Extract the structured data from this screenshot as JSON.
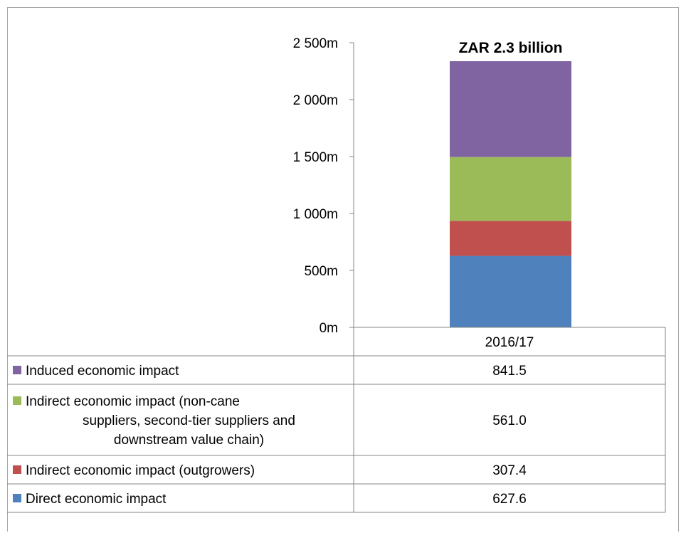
{
  "chart_data": {
    "type": "bar",
    "stacked": true,
    "categories": [
      "2016/17"
    ],
    "series": [
      {
        "name": "Direct economic impact",
        "values": [
          627.6
        ],
        "value_label": "627.6",
        "color": "#4f81bd"
      },
      {
        "name": "Indirect economic impact (outgrowers)",
        "values": [
          307.4
        ],
        "value_label": "307.4",
        "color": "#c0504d"
      },
      {
        "name": "Indirect economic impact (non-cane suppliers, second-tier suppliers and downstream value chain)",
        "name_lines": [
          "Indirect economic impact (non-cane",
          "suppliers, second-tier suppliers and",
          "downstream value chain)"
        ],
        "values": [
          561.0
        ],
        "value_label": "561.0",
        "color": "#9bbb59"
      },
      {
        "name": "Induced economic impact",
        "values": [
          841.5
        ],
        "value_label": "841.5",
        "color": "#8064a2"
      }
    ],
    "total_label": "ZAR 2.3 billion",
    "yticks": [
      0,
      500,
      1000,
      1500,
      2000,
      2500
    ],
    "ytick_labels": [
      "0m",
      "500m",
      "1 000m",
      "1 500m",
      "2 000m",
      "2 500m"
    ],
    "ylim": [
      0,
      2500
    ],
    "grid": false,
    "legend": "data-table"
  }
}
